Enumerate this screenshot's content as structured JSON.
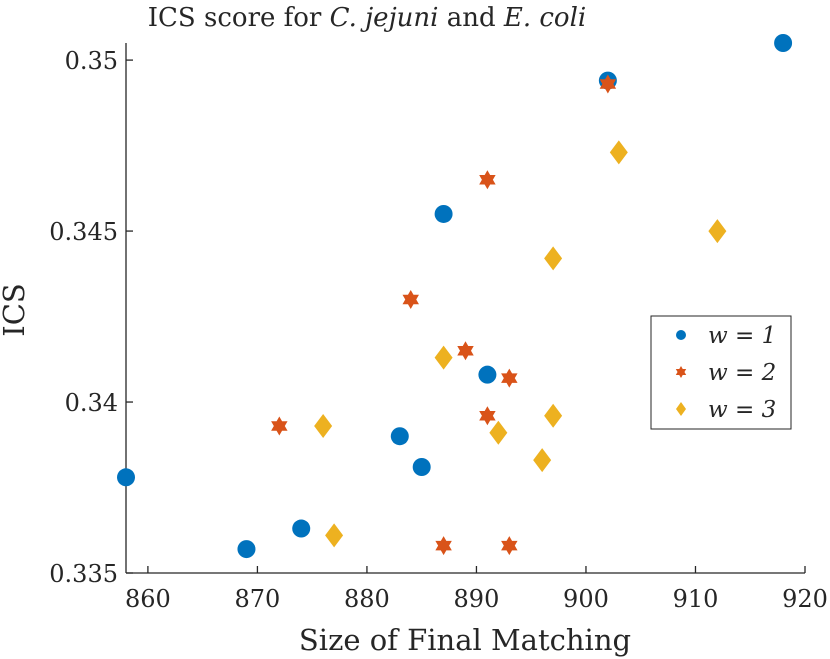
{
  "chart_data": {
    "type": "scatter",
    "title_parts": [
      {
        "text": "ICS score for ",
        "italic": false
      },
      {
        "text": "C. jejuni",
        "italic": true
      },
      {
        "text": " and ",
        "italic": false
      },
      {
        "text": "E. coli",
        "italic": true
      }
    ],
    "xlabel": "Size of Final Matching",
    "ylabel": "ICS",
    "xlim": [
      858,
      920
    ],
    "ylim": [
      0.335,
      0.3505
    ],
    "xticks": [
      860,
      870,
      880,
      890,
      900,
      910,
      920
    ],
    "yticks": [
      0.335,
      0.34,
      0.345,
      0.35
    ],
    "ytick_labels": [
      "0.335",
      "0.34",
      "0.345",
      "0.35"
    ],
    "grid": false,
    "legend_position": "right",
    "series": [
      {
        "name": "w = 1",
        "legend_label": "w = 1",
        "marker": "circle",
        "color": "#0072BD",
        "points": [
          [
            858,
            0.3378
          ],
          [
            869,
            0.3357
          ],
          [
            874,
            0.3363
          ],
          [
            883,
            0.339
          ],
          [
            885,
            0.3381
          ],
          [
            887,
            0.3455
          ],
          [
            891,
            0.3408
          ],
          [
            902,
            0.3494
          ],
          [
            918,
            0.3505
          ]
        ]
      },
      {
        "name": "w = 2",
        "legend_label": "w = 2",
        "marker": "hexagram",
        "color": "#D95319",
        "points": [
          [
            872,
            0.3393
          ],
          [
            884,
            0.343
          ],
          [
            887,
            0.3358
          ],
          [
            889,
            0.3415
          ],
          [
            891,
            0.3396
          ],
          [
            891,
            0.3465
          ],
          [
            893,
            0.3407
          ],
          [
            893,
            0.3358
          ],
          [
            902,
            0.3493
          ]
        ]
      },
      {
        "name": "w = 3",
        "legend_label": "w = 3",
        "marker": "diamond",
        "color": "#EDB120",
        "points": [
          [
            876,
            0.3393
          ],
          [
            877,
            0.3361
          ],
          [
            887,
            0.3413
          ],
          [
            892,
            0.3391
          ],
          [
            896,
            0.3383
          ],
          [
            897,
            0.3442
          ],
          [
            897,
            0.3396
          ],
          [
            903,
            0.3473
          ],
          [
            912,
            0.345
          ]
        ]
      }
    ]
  }
}
